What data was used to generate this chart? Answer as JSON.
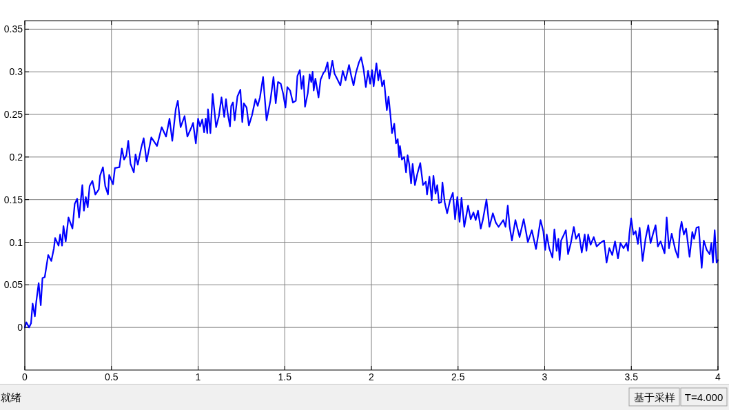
{
  "chart_data": {
    "type": "line",
    "x": [
      0,
      0.009,
      0.025,
      0.036,
      0.045,
      0.058,
      0.066,
      0.08,
      0.092,
      0.102,
      0.115,
      0.135,
      0.153,
      0.168,
      0.175,
      0.195,
      0.204,
      0.215,
      0.223,
      0.236,
      0.252,
      0.275,
      0.288,
      0.302,
      0.313,
      0.332,
      0.341,
      0.352,
      0.363,
      0.374,
      0.39,
      0.407,
      0.427,
      0.434,
      0.451,
      0.464,
      0.48,
      0.487,
      0.509,
      0.52,
      0.546,
      0.56,
      0.573,
      0.586,
      0.597,
      0.61,
      0.629,
      0.639,
      0.652,
      0.672,
      0.686,
      0.703,
      0.73,
      0.763,
      0.79,
      0.815,
      0.835,
      0.851,
      0.871,
      0.883,
      0.899,
      0.922,
      0.938,
      0.962,
      0.971,
      0.987,
      1.0,
      1.011,
      1.024,
      1.035,
      1.044,
      1.053,
      1.057,
      1.071,
      1.084,
      1.104,
      1.12,
      1.135,
      1.151,
      1.161,
      1.171,
      1.184,
      1.191,
      1.201,
      1.211,
      1.227,
      1.244,
      1.255,
      1.264,
      1.28,
      1.293,
      1.311,
      1.331,
      1.344,
      1.357,
      1.375,
      1.395,
      1.417,
      1.435,
      1.448,
      1.461,
      1.477,
      1.491,
      1.504,
      1.515,
      1.531,
      1.547,
      1.564,
      1.573,
      1.587,
      1.597,
      1.608,
      1.617,
      1.633,
      1.644,
      1.653,
      1.661,
      1.667,
      1.677,
      1.695,
      1.707,
      1.724,
      1.733,
      1.747,
      1.757,
      1.775,
      1.787,
      1.804,
      1.821,
      1.835,
      1.851,
      1.871,
      1.884,
      1.897,
      1.911,
      1.928,
      1.941,
      1.955,
      1.968,
      1.981,
      1.993,
      2.004,
      2.013,
      2.029,
      2.04,
      2.049,
      2.062,
      2.073,
      2.089,
      2.099,
      2.11,
      2.119,
      2.132,
      2.142,
      2.152,
      2.16,
      2.165,
      2.176,
      2.189,
      2.2,
      2.209,
      2.218,
      2.229,
      2.238,
      2.251,
      2.265,
      2.282,
      2.298,
      2.314,
      2.321,
      2.335,
      2.348,
      2.358,
      2.37,
      2.38,
      2.39,
      2.403,
      2.41,
      2.423,
      2.437,
      2.454,
      2.47,
      2.483,
      2.496,
      2.509,
      2.52,
      2.536,
      2.558,
      2.573,
      2.589,
      2.602,
      2.615,
      2.631,
      2.644,
      2.664,
      2.681,
      2.701,
      2.718,
      2.734,
      2.761,
      2.774,
      2.787,
      2.798,
      2.811,
      2.831,
      2.855,
      2.879,
      2.903,
      2.926,
      2.95,
      2.976,
      2.992,
      3.003,
      3.012,
      3.026,
      3.045,
      3.056,
      3.069,
      3.079,
      3.086,
      3.095,
      3.111,
      3.122,
      3.135,
      3.151,
      3.168,
      3.181,
      3.198,
      3.214,
      3.231,
      3.241,
      3.251,
      3.265,
      3.283,
      3.3,
      3.32,
      3.343,
      3.357,
      3.373,
      3.39,
      3.406,
      3.423,
      3.437,
      3.455,
      3.472,
      3.481,
      3.489,
      3.499,
      3.512,
      3.525,
      3.538,
      3.548,
      3.565,
      3.582,
      3.598,
      3.611,
      3.624,
      3.64,
      3.653,
      3.669,
      3.692,
      3.704,
      3.717,
      3.733,
      3.754,
      3.77,
      3.78,
      3.79,
      3.803,
      3.816,
      3.836,
      3.852,
      3.862,
      3.876,
      3.889,
      3.906,
      3.918,
      3.935,
      3.952,
      3.962,
      3.971,
      3.981,
      3.992,
      4.0
    ],
    "series": [
      {
        "color": "#0000ff",
        "values": [
          0,
          0.006,
          0,
          0.005,
          0.028,
          0.013,
          0.03,
          0.052,
          0.026,
          0.058,
          0.059,
          0.085,
          0.078,
          0.093,
          0.105,
          0.096,
          0.109,
          0.096,
          0.119,
          0.101,
          0.129,
          0.116,
          0.145,
          0.151,
          0.129,
          0.167,
          0.137,
          0.153,
          0.141,
          0.166,
          0.172,
          0.156,
          0.162,
          0.178,
          0.188,
          0.166,
          0.156,
          0.179,
          0.168,
          0.187,
          0.188,
          0.21,
          0.197,
          0.202,
          0.219,
          0.192,
          0.182,
          0.203,
          0.191,
          0.211,
          0.222,
          0.195,
          0.223,
          0.213,
          0.235,
          0.224,
          0.245,
          0.219,
          0.256,
          0.266,
          0.235,
          0.248,
          0.224,
          0.235,
          0.24,
          0.216,
          0.245,
          0.236,
          0.244,
          0.229,
          0.245,
          0.228,
          0.256,
          0.228,
          0.274,
          0.235,
          0.248,
          0.27,
          0.247,
          0.268,
          0.251,
          0.236,
          0.26,
          0.264,
          0.243,
          0.271,
          0.279,
          0.241,
          0.263,
          0.258,
          0.237,
          0.249,
          0.268,
          0.26,
          0.27,
          0.294,
          0.243,
          0.266,
          0.294,
          0.263,
          0.288,
          0.286,
          0.274,
          0.258,
          0.282,
          0.278,
          0.264,
          0.266,
          0.295,
          0.302,
          0.28,
          0.295,
          0.259,
          0.275,
          0.297,
          0.288,
          0.3,
          0.278,
          0.292,
          0.27,
          0.291,
          0.299,
          0.301,
          0.311,
          0.292,
          0.313,
          0.298,
          0.291,
          0.284,
          0.301,
          0.29,
          0.308,
          0.295,
          0.284,
          0.299,
          0.311,
          0.317,
          0.303,
          0.282,
          0.301,
          0.286,
          0.302,
          0.283,
          0.31,
          0.29,
          0.302,
          0.283,
          0.29,
          0.255,
          0.271,
          0.249,
          0.228,
          0.239,
          0.216,
          0.221,
          0.2,
          0.213,
          0.197,
          0.2,
          0.182,
          0.202,
          0.192,
          0.169,
          0.192,
          0.167,
          0.18,
          0.193,
          0.167,
          0.171,
          0.156,
          0.177,
          0.149,
          0.178,
          0.157,
          0.167,
          0.146,
          0.147,
          0.17,
          0.147,
          0.134,
          0.149,
          0.158,
          0.127,
          0.153,
          0.124,
          0.152,
          0.118,
          0.143,
          0.127,
          0.135,
          0.126,
          0.137,
          0.116,
          0.127,
          0.15,
          0.118,
          0.134,
          0.123,
          0.118,
          0.126,
          0.118,
          0.143,
          0.118,
          0.102,
          0.126,
          0.106,
          0.127,
          0.1,
          0.114,
          0.092,
          0.126,
          0.113,
          0.091,
          0.109,
          0.093,
          0.082,
          0.115,
          0.09,
          0.104,
          0.079,
          0.102,
          0.109,
          0.114,
          0.086,
          0.099,
          0.118,
          0.104,
          0.11,
          0.088,
          0.109,
          0.09,
          0.109,
          0.097,
          0.106,
          0.095,
          0.099,
          0.102,
          0.076,
          0.093,
          0.085,
          0.101,
          0.081,
          0.099,
          0.093,
          0.099,
          0.09,
          0.11,
          0.128,
          0.109,
          0.113,
          0.098,
          0.117,
          0.078,
          0.104,
          0.12,
          0.099,
          0.109,
          0.12,
          0.095,
          0.101,
          0.087,
          0.129,
          0.093,
          0.11,
          0.091,
          0.082,
          0.113,
          0.124,
          0.109,
          0.116,
          0.083,
          0.112,
          0.104,
          0.117,
          0.118,
          0.07,
          0.102,
          0.091,
          0.086,
          0.099,
          0.076,
          0.114,
          0.076,
          0.079
        ]
      }
    ],
    "xlim": [
      0,
      4
    ],
    "ylim": [
      -0.05,
      0.36
    ],
    "xticks": [
      0,
      0.5,
      1,
      1.5,
      2,
      2.5,
      3,
      3.5,
      4
    ],
    "yticks": [
      0,
      0.05,
      0.1,
      0.15,
      0.2,
      0.25,
      0.3,
      0.35
    ],
    "grid": true,
    "line_style": "solid",
    "annotations": [
      "就绪",
      "基于采样",
      "T=4.000"
    ]
  }
}
